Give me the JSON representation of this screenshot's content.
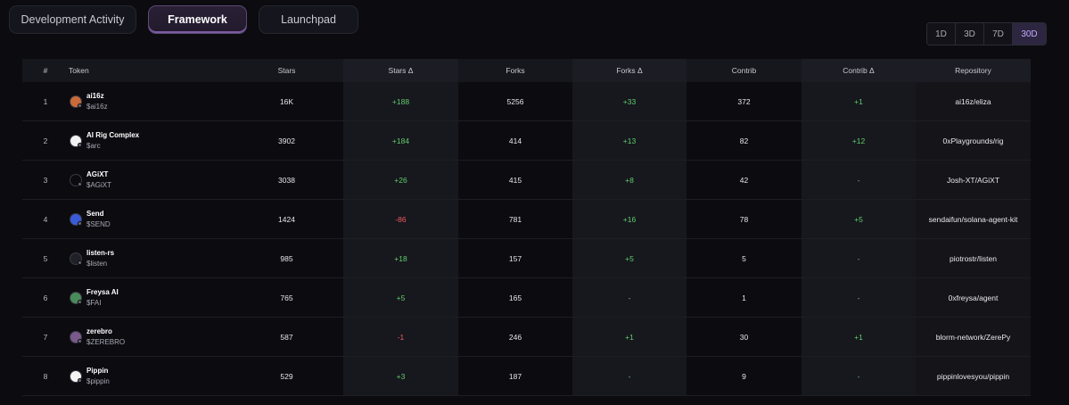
{
  "tabs": [
    {
      "label": "Development Activity",
      "active": false
    },
    {
      "label": "Framework",
      "active": true
    },
    {
      "label": "Launchpad",
      "active": false
    }
  ],
  "range": [
    "1D",
    "3D",
    "7D",
    "30D"
  ],
  "range_active": "30D",
  "columns": [
    "#",
    "Token",
    "Stars",
    "Stars Δ",
    "Forks",
    "Forks Δ",
    "Contrib",
    "Contrib Δ",
    "Repository"
  ],
  "rows": [
    {
      "rank": "1",
      "name": "ai16z",
      "symbol": "$ai16z",
      "avatar_color": "#c96a3a",
      "stars": "16K",
      "stars_delta": "+188",
      "forks": "5256",
      "forks_delta": "+33",
      "contrib": "372",
      "contrib_delta": "+1",
      "repo": "ai16z/eliza"
    },
    {
      "rank": "2",
      "name": "AI Rig Complex",
      "symbol": "$arc",
      "avatar_color": "#f2f2f2",
      "stars": "3902",
      "stars_delta": "+184",
      "forks": "414",
      "forks_delta": "+13",
      "contrib": "82",
      "contrib_delta": "+12",
      "repo": "0xPlaygrounds/rig"
    },
    {
      "rank": "3",
      "name": "AGiXT",
      "symbol": "$AGiXT",
      "avatar_color": "#0b0b10",
      "stars": "3038",
      "stars_delta": "+26",
      "forks": "415",
      "forks_delta": "+8",
      "contrib": "42",
      "contrib_delta": "-",
      "repo": "Josh-XT/AGiXT"
    },
    {
      "rank": "4",
      "name": "Send",
      "symbol": "$SEND",
      "avatar_color": "#3a5bd9",
      "stars": "1424",
      "stars_delta": "-86",
      "forks": "781",
      "forks_delta": "+16",
      "contrib": "78",
      "contrib_delta": "+5",
      "repo": "sendaifun/solana-agent-kit"
    },
    {
      "rank": "5",
      "name": "listen-rs",
      "symbol": "$listen",
      "avatar_color": "#202028",
      "stars": "985",
      "stars_delta": "+18",
      "forks": "157",
      "forks_delta": "+5",
      "contrib": "5",
      "contrib_delta": "-",
      "repo": "piotrostr/listen"
    },
    {
      "rank": "6",
      "name": "Freysa AI",
      "symbol": "$FAI",
      "avatar_color": "#4a8a5a",
      "stars": "765",
      "stars_delta": "+5",
      "forks": "165",
      "forks_delta": "-",
      "contrib": "1",
      "contrib_delta": "-",
      "repo": "0xfreysa/agent"
    },
    {
      "rank": "7",
      "name": "zerebro",
      "symbol": "$ZEREBRO",
      "avatar_color": "#7a5a8a",
      "stars": "587",
      "stars_delta": "-1",
      "forks": "246",
      "forks_delta": "+1",
      "contrib": "30",
      "contrib_delta": "+1",
      "repo": "blorm-network/ZerePy"
    },
    {
      "rank": "8",
      "name": "Pippin",
      "symbol": "$pippin",
      "avatar_color": "#f4f4f4",
      "stars": "529",
      "stars_delta": "+3",
      "forks": "187",
      "forks_delta": "-",
      "contrib": "9",
      "contrib_delta": "-",
      "repo": "pippinlovesyou/pippin"
    }
  ],
  "colors": {
    "positive": "#5fcf6a",
    "negative": "#ef5b5b",
    "accent": "#c6a9ff"
  }
}
